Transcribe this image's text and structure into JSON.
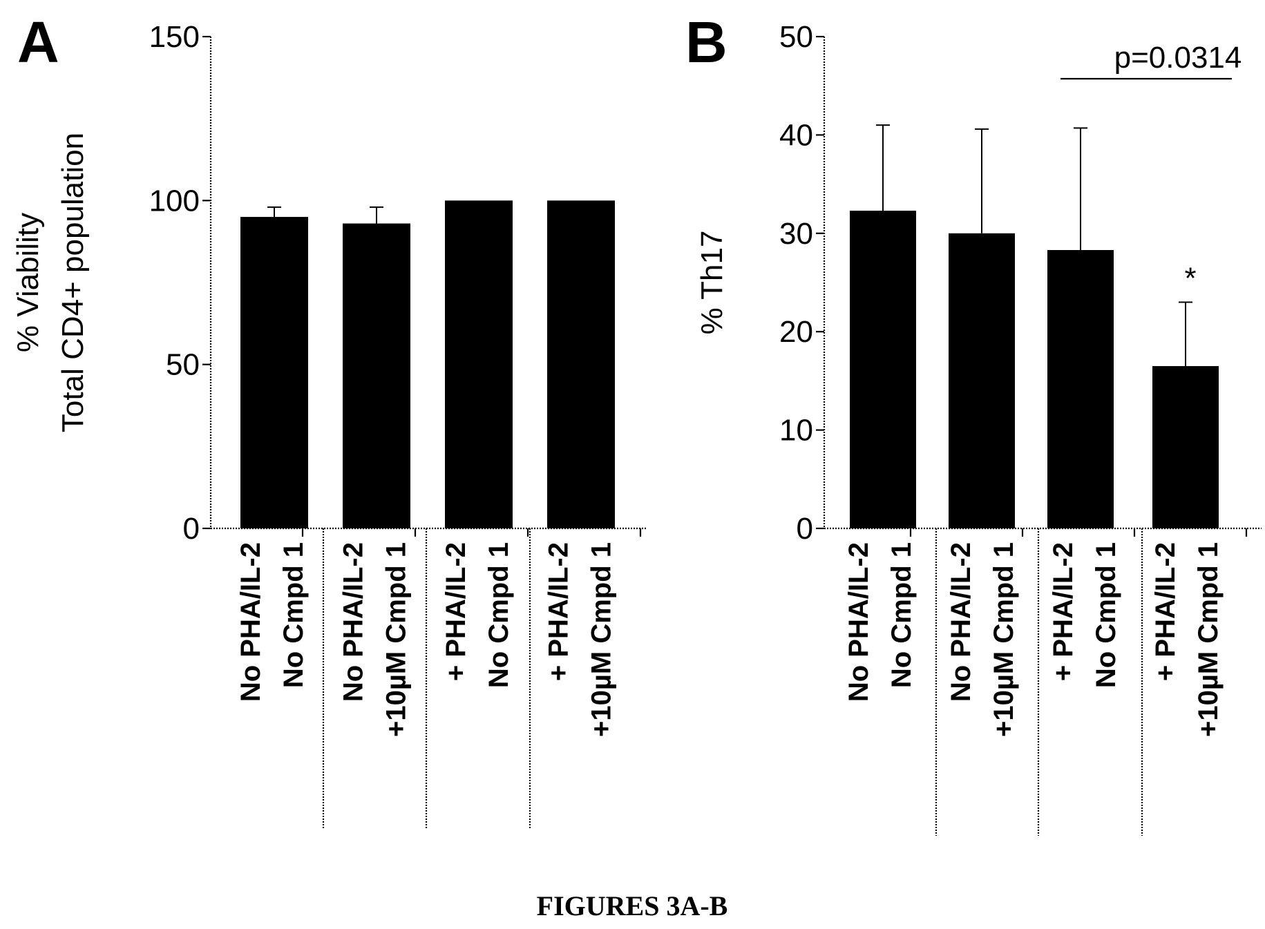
{
  "caption": "FIGURES 3A-B",
  "chart_data": [
    {
      "panel": "A",
      "type": "bar",
      "ylabel_lines": [
        "% Viability",
        "Total CD4+ population"
      ],
      "ylim": [
        0,
        150
      ],
      "yticks": [
        0,
        50,
        100,
        150
      ],
      "categories": [
        [
          "No PHA/IL-2",
          "No Cmpd 1"
        ],
        [
          "No PHA/IL-2",
          "+10µM Cmpd 1"
        ],
        [
          "+ PHA/IL-2",
          "No Cmpd 1"
        ],
        [
          "+ PHA/IL-2",
          "+10µM Cmpd 1"
        ]
      ],
      "values": [
        95,
        93,
        100,
        100
      ],
      "errors": [
        3,
        5,
        0,
        0
      ],
      "annotations": []
    },
    {
      "panel": "B",
      "type": "bar",
      "ylabel_lines": [
        "% Th17"
      ],
      "ylim": [
        0,
        50
      ],
      "yticks": [
        0,
        10,
        20,
        30,
        40,
        50
      ],
      "categories": [
        [
          "No PHA/IL-2",
          "No Cmpd 1"
        ],
        [
          "No PHA/IL-2",
          "+10µM Cmpd 1"
        ],
        [
          "+ PHA/IL-2",
          "No Cmpd 1"
        ],
        [
          "+ PHA/IL-2",
          "+10µM Cmpd 1"
        ]
      ],
      "values": [
        32.3,
        30,
        28.3,
        16.5
      ],
      "errors": [
        8.7,
        10.6,
        12.4,
        6.5
      ],
      "annotations": [
        {
          "text": "p=0.0314",
          "underlined": true
        },
        {
          "text": "*",
          "category_index": 3
        }
      ]
    }
  ]
}
